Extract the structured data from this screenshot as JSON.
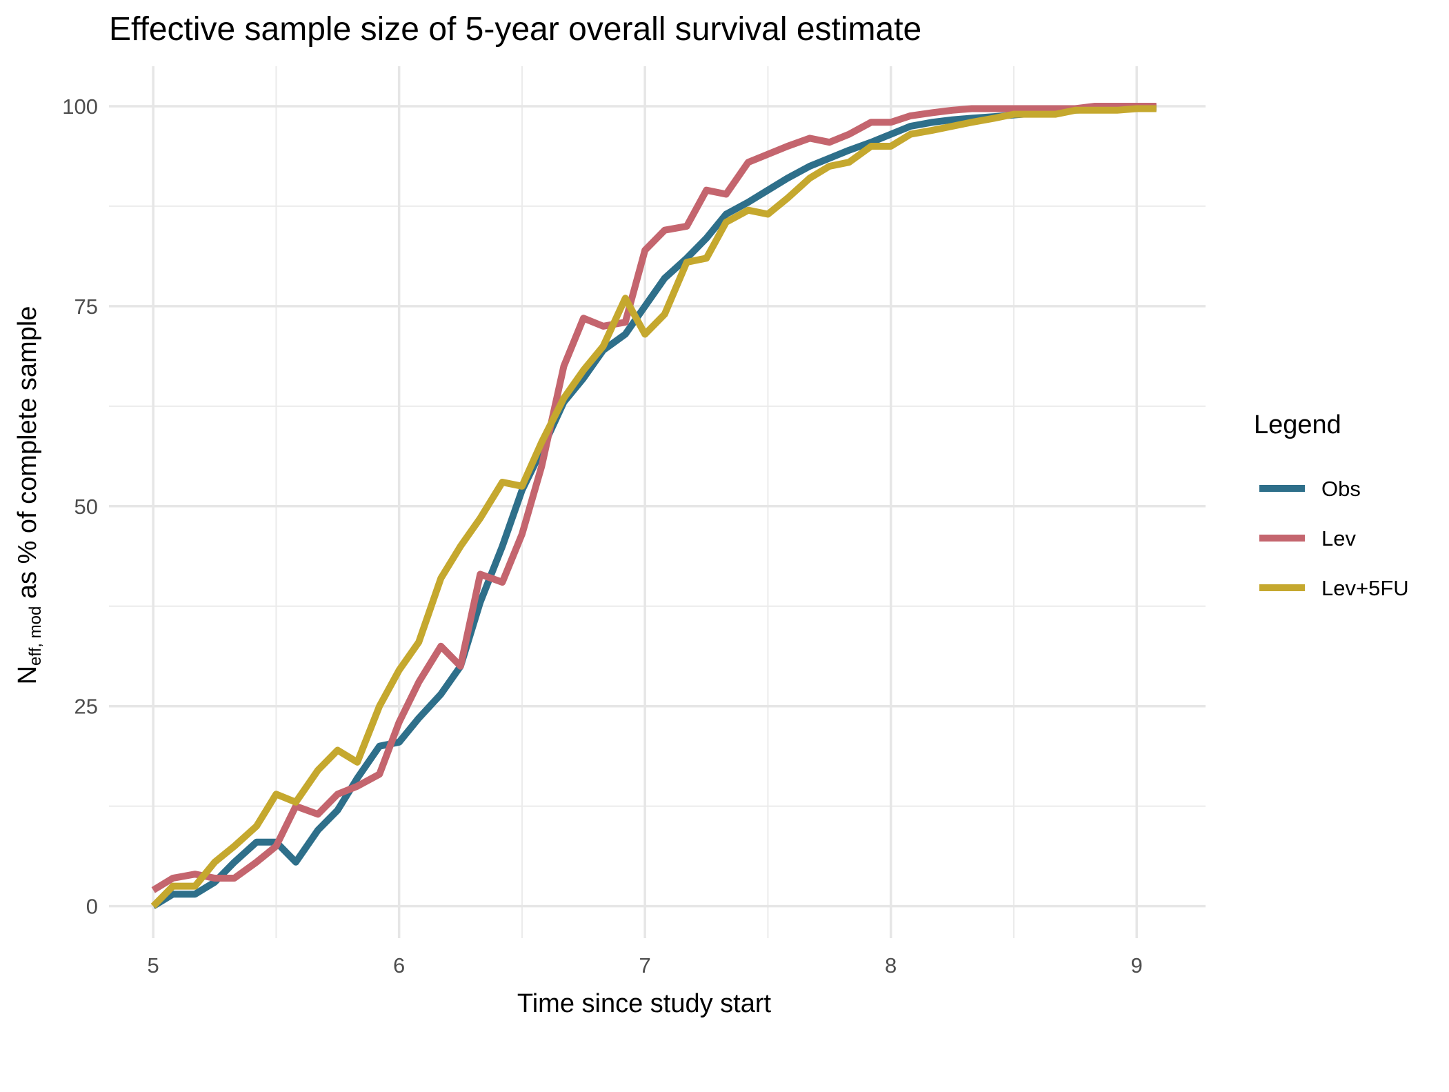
{
  "chart_data": {
    "type": "line",
    "title": "Effective sample size of 5-year overall survival estimate",
    "xlabel": "Time since study start",
    "ylabel_main": "N",
    "ylabel_subscript": "eff, mod",
    "ylabel_rest": " as % of complete sample",
    "xlim": [
      4.82,
      9.28
    ],
    "ylim": [
      -4,
      105
    ],
    "x_ticks": [
      5,
      6,
      7,
      8,
      9
    ],
    "x_tick_labels": [
      "5",
      "6",
      "7",
      "8",
      "9"
    ],
    "y_ticks": [
      0,
      25,
      50,
      75,
      100
    ],
    "y_tick_labels": [
      "0",
      "25",
      "50",
      "75",
      "100"
    ],
    "x_minor": [
      5.5,
      6.5,
      7.5,
      8.5
    ],
    "y_minor": [
      12.5,
      37.5,
      62.5,
      87.5
    ],
    "grid": true,
    "legend": {
      "title": "Legend",
      "position": "right"
    },
    "series": [
      {
        "name": "Obs",
        "color": "#2e6f8a",
        "points": [
          [
            5.0,
            0
          ],
          [
            5.08,
            1.5
          ],
          [
            5.17,
            1.5
          ],
          [
            5.25,
            3
          ],
          [
            5.33,
            5.5
          ],
          [
            5.42,
            8
          ],
          [
            5.5,
            8
          ],
          [
            5.58,
            5.5
          ],
          [
            5.67,
            9.5
          ],
          [
            5.75,
            12
          ],
          [
            5.83,
            16
          ],
          [
            5.92,
            20
          ],
          [
            6.0,
            20.5
          ],
          [
            6.08,
            23.5
          ],
          [
            6.17,
            26.5
          ],
          [
            6.25,
            30
          ],
          [
            6.33,
            38
          ],
          [
            6.42,
            45
          ],
          [
            6.5,
            52
          ],
          [
            6.58,
            57
          ],
          [
            6.67,
            63
          ],
          [
            6.75,
            66
          ],
          [
            6.83,
            69.5
          ],
          [
            6.92,
            71.5
          ],
          [
            7.0,
            75
          ],
          [
            7.08,
            78.5
          ],
          [
            7.17,
            81
          ],
          [
            7.25,
            83.5
          ],
          [
            7.33,
            86.5
          ],
          [
            7.42,
            88
          ],
          [
            7.5,
            89.5
          ],
          [
            7.58,
            91
          ],
          [
            7.67,
            92.5
          ],
          [
            7.75,
            93.5
          ],
          [
            7.83,
            94.5
          ],
          [
            7.92,
            95.5
          ],
          [
            8.0,
            96.5
          ],
          [
            8.08,
            97.5
          ],
          [
            8.17,
            98
          ],
          [
            8.25,
            98.3
          ],
          [
            8.33,
            98.5
          ],
          [
            8.42,
            98.7
          ],
          [
            8.5,
            98.9
          ],
          [
            8.58,
            99.1
          ],
          [
            8.67,
            99.3
          ],
          [
            8.75,
            99.5
          ],
          [
            8.83,
            99.6
          ],
          [
            8.92,
            99.7
          ],
          [
            9.0,
            99.8
          ],
          [
            9.08,
            99.8
          ]
        ]
      },
      {
        "name": "Lev",
        "color": "#c4656e",
        "points": [
          [
            5.0,
            2
          ],
          [
            5.08,
            3.5
          ],
          [
            5.17,
            4
          ],
          [
            5.25,
            3.5
          ],
          [
            5.33,
            3.5
          ],
          [
            5.42,
            5.5
          ],
          [
            5.5,
            7.5
          ],
          [
            5.58,
            12.5
          ],
          [
            5.67,
            11.5
          ],
          [
            5.75,
            14
          ],
          [
            5.83,
            15
          ],
          [
            5.92,
            16.5
          ],
          [
            6.0,
            23
          ],
          [
            6.08,
            28
          ],
          [
            6.17,
            32.5
          ],
          [
            6.25,
            30
          ],
          [
            6.33,
            41.5
          ],
          [
            6.42,
            40.5
          ],
          [
            6.5,
            46.5
          ],
          [
            6.58,
            55
          ],
          [
            6.67,
            67.5
          ],
          [
            6.75,
            73.5
          ],
          [
            6.83,
            72.5
          ],
          [
            6.92,
            73
          ],
          [
            7.0,
            82
          ],
          [
            7.08,
            84.5
          ],
          [
            7.17,
            85
          ],
          [
            7.25,
            89.5
          ],
          [
            7.33,
            89
          ],
          [
            7.42,
            93
          ],
          [
            7.5,
            94
          ],
          [
            7.58,
            95
          ],
          [
            7.67,
            96
          ],
          [
            7.75,
            95.5
          ],
          [
            7.83,
            96.5
          ],
          [
            7.92,
            98
          ],
          [
            8.0,
            98
          ],
          [
            8.08,
            98.8
          ],
          [
            8.17,
            99.2
          ],
          [
            8.25,
            99.5
          ],
          [
            8.33,
            99.7
          ],
          [
            8.42,
            99.7
          ],
          [
            8.5,
            99.7
          ],
          [
            8.58,
            99.7
          ],
          [
            8.67,
            99.7
          ],
          [
            8.75,
            99.7
          ],
          [
            8.83,
            100
          ],
          [
            8.92,
            100
          ],
          [
            9.0,
            100
          ],
          [
            9.08,
            100
          ]
        ]
      },
      {
        "name": "Lev+5FU",
        "color": "#c5a82e",
        "points": [
          [
            5.0,
            0
          ],
          [
            5.08,
            2.5
          ],
          [
            5.17,
            2.5
          ],
          [
            5.25,
            5.5
          ],
          [
            5.33,
            7.5
          ],
          [
            5.42,
            10
          ],
          [
            5.5,
            14
          ],
          [
            5.58,
            13
          ],
          [
            5.67,
            17
          ],
          [
            5.75,
            19.5
          ],
          [
            5.83,
            18
          ],
          [
            5.92,
            25
          ],
          [
            6.0,
            29.5
          ],
          [
            6.08,
            33
          ],
          [
            6.17,
            41
          ],
          [
            6.25,
            45
          ],
          [
            6.33,
            48.5
          ],
          [
            6.42,
            53
          ],
          [
            6.5,
            52.5
          ],
          [
            6.58,
            58
          ],
          [
            6.67,
            63.5
          ],
          [
            6.75,
            67
          ],
          [
            6.83,
            70
          ],
          [
            6.92,
            76
          ],
          [
            7.0,
            71.5
          ],
          [
            7.08,
            74
          ],
          [
            7.17,
            80.5
          ],
          [
            7.25,
            81
          ],
          [
            7.33,
            85.5
          ],
          [
            7.42,
            87
          ],
          [
            7.5,
            86.5
          ],
          [
            7.58,
            88.5
          ],
          [
            7.67,
            91
          ],
          [
            7.75,
            92.5
          ],
          [
            7.83,
            93
          ],
          [
            7.92,
            95
          ],
          [
            8.0,
            95
          ],
          [
            8.08,
            96.5
          ],
          [
            8.17,
            97
          ],
          [
            8.25,
            97.5
          ],
          [
            8.33,
            98
          ],
          [
            8.42,
            98.5
          ],
          [
            8.5,
            99
          ],
          [
            8.58,
            99
          ],
          [
            8.67,
            99
          ],
          [
            8.75,
            99.5
          ],
          [
            8.83,
            99.5
          ],
          [
            8.92,
            99.5
          ],
          [
            9.0,
            99.7
          ],
          [
            9.08,
            99.7
          ]
        ]
      }
    ]
  }
}
